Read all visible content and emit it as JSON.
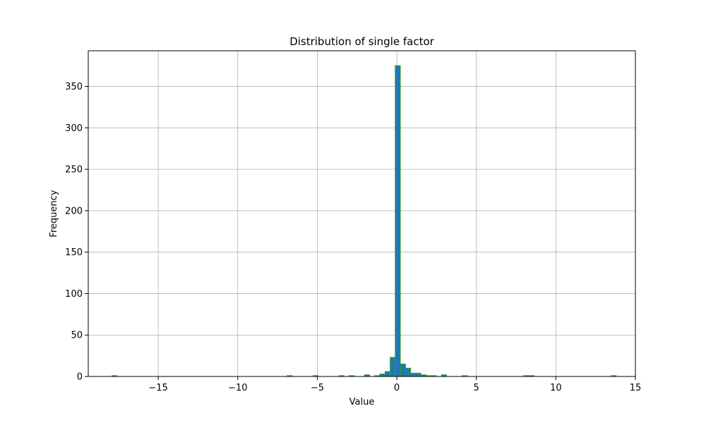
{
  "chart_data": {
    "type": "bar",
    "title": "Distribution of single factor",
    "xlabel": "Value",
    "ylabel": "Frequency",
    "xlim": [
      -19.4,
      15.0
    ],
    "ylim": [
      0,
      393
    ],
    "x_ticks": [
      -15,
      -10,
      -5,
      0,
      5,
      10,
      15
    ],
    "x_tick_labels": [
      "−15",
      "−10",
      "−5",
      "0",
      "5",
      "10",
      "15"
    ],
    "y_ticks": [
      0,
      50,
      100,
      150,
      200,
      250,
      300,
      350
    ],
    "y_tick_labels": [
      "0",
      "50",
      "100",
      "150",
      "200",
      "250",
      "300",
      "350"
    ],
    "grid": true,
    "bar_fill": "#1f77b4",
    "bar_edge": "#2ca02c",
    "bin_width": 0.32,
    "bins": [
      {
        "x": -17.75,
        "count": 1
      },
      {
        "x": -6.74,
        "count": 1
      },
      {
        "x": -5.11,
        "count": 1
      },
      {
        "x": -3.48,
        "count": 1
      },
      {
        "x": -2.84,
        "count": 1
      },
      {
        "x": -1.87,
        "count": 2
      },
      {
        "x": -1.23,
        "count": 1
      },
      {
        "x": -0.91,
        "count": 3
      },
      {
        "x": -0.58,
        "count": 6
      },
      {
        "x": -0.26,
        "count": 23
      },
      {
        "x": 0.06,
        "count": 375
      },
      {
        "x": 0.39,
        "count": 15
      },
      {
        "x": 0.71,
        "count": 10
      },
      {
        "x": 1.03,
        "count": 4
      },
      {
        "x": 1.35,
        "count": 4
      },
      {
        "x": 1.68,
        "count": 2
      },
      {
        "x": 2.0,
        "count": 1
      },
      {
        "x": 2.32,
        "count": 1
      },
      {
        "x": 2.97,
        "count": 2
      },
      {
        "x": 4.27,
        "count": 1
      },
      {
        "x": 8.13,
        "count": 1
      },
      {
        "x": 8.46,
        "count": 1
      },
      {
        "x": 13.63,
        "count": 1
      }
    ]
  }
}
